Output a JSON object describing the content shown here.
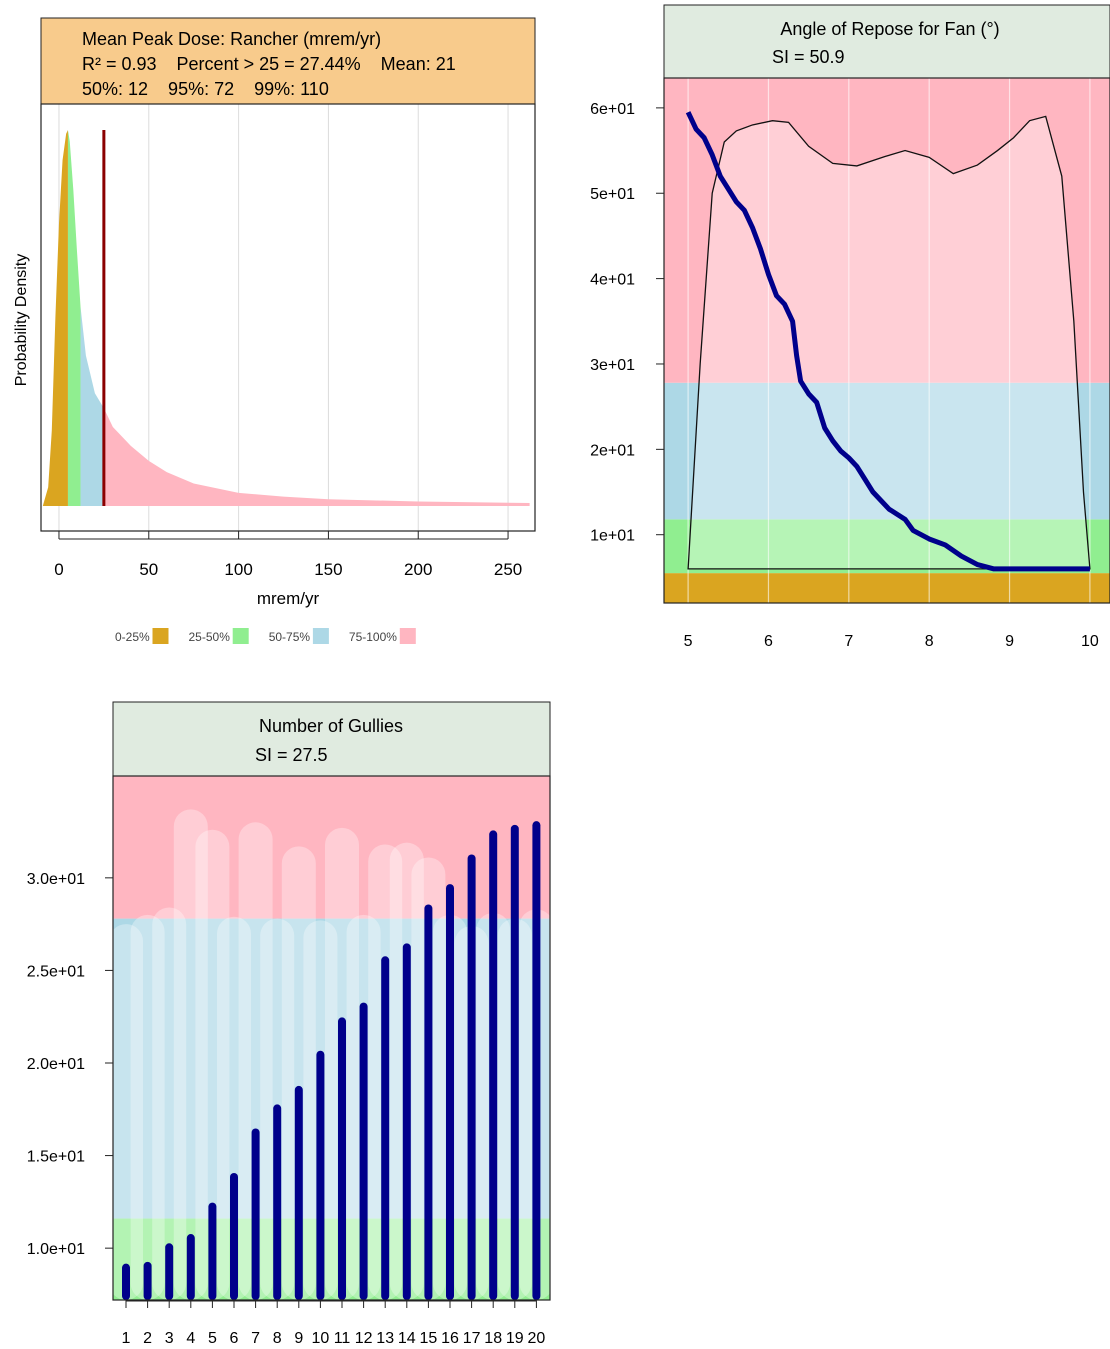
{
  "colors": {
    "q0_25": "#DAA520",
    "q25_50": "#90EE90",
    "q50_75": "#ADD8E6",
    "q75_100": "#FFB6C1",
    "mean_line": "#8B0000",
    "series": "#00008B",
    "header_orange": "#F8CB8C",
    "header_green": "#E0EBE0"
  },
  "chart_data": [
    {
      "type": "area",
      "title_lines": [
        "Mean Peak Dose: Rancher (mrem/yr)",
        "R² = 0.93    Percent > 25 = 27.44%    Mean: 21",
        "50%: 12    95%: 72    99%: 110"
      ],
      "xlabel": "mrem/yr",
      "ylabel": "Probability Density",
      "xticks": [
        "0",
        "50",
        "100",
        "150",
        "200",
        "250"
      ],
      "xlim": [
        -10,
        265
      ],
      "mean_line_x": 25,
      "quantile_breaks": [
        5,
        12,
        25
      ],
      "density": [
        [
          -9,
          0
        ],
        [
          -6,
          0.05
        ],
        [
          -4,
          0.2
        ],
        [
          -2,
          0.5
        ],
        [
          0,
          0.75
        ],
        [
          2,
          0.92
        ],
        [
          4,
          0.99
        ],
        [
          5,
          1.0
        ],
        [
          6,
          0.97
        ],
        [
          8,
          0.84
        ],
        [
          10,
          0.68
        ],
        [
          12,
          0.53
        ],
        [
          15,
          0.4
        ],
        [
          20,
          0.3
        ],
        [
          25,
          0.26
        ],
        [
          30,
          0.21
        ],
        [
          40,
          0.16
        ],
        [
          50,
          0.12
        ],
        [
          60,
          0.09
        ],
        [
          75,
          0.06
        ],
        [
          100,
          0.035
        ],
        [
          125,
          0.025
        ],
        [
          150,
          0.018
        ],
        [
          200,
          0.012
        ],
        [
          262,
          0.008
        ]
      ],
      "legend": [
        {
          "label": "0-25%",
          "color_key": "q0_25"
        },
        {
          "label": "25-50%",
          "color_key": "q25_50"
        },
        {
          "label": "50-75%",
          "color_key": "q50_75"
        },
        {
          "label": "75-100%",
          "color_key": "q75_100"
        }
      ],
      "legend_placement": "bottom"
    },
    {
      "type": "line",
      "title_lines": [
        "Angle of Repose for Fan (°)",
        "SI = 50.9"
      ],
      "xticks": [
        "5",
        "6",
        "7",
        "8",
        "9",
        "10"
      ],
      "yticks": [
        "1e+01",
        "2e+01",
        "3e+01",
        "4e+01",
        "5e+01",
        "6e+01"
      ],
      "xlim": [
        4.7,
        10.25
      ],
      "ylim": [
        2,
        63.5
      ],
      "bands": [
        {
          "from": 2,
          "to": 5.5,
          "color_key": "q0_25"
        },
        {
          "from": 5.5,
          "to": 11.8,
          "color_key": "q25_50"
        },
        {
          "from": 11.8,
          "to": 27.8,
          "color_key": "q50_75"
        },
        {
          "from": 27.8,
          "to": 63.5,
          "color_key": "q75_100"
        }
      ],
      "series": {
        "values": [
          [
            5.0,
            59.5
          ],
          [
            5.1,
            57.5
          ],
          [
            5.2,
            56.5
          ],
          [
            5.3,
            54.5
          ],
          [
            5.4,
            52
          ],
          [
            5.5,
            50.5
          ],
          [
            5.6,
            49
          ],
          [
            5.7,
            48
          ],
          [
            5.8,
            46
          ],
          [
            5.9,
            43.5
          ],
          [
            6.0,
            40.5
          ],
          [
            6.1,
            38
          ],
          [
            6.2,
            37
          ],
          [
            6.3,
            35
          ],
          [
            6.35,
            31
          ],
          [
            6.4,
            28
          ],
          [
            6.5,
            26.5
          ],
          [
            6.6,
            25.5
          ],
          [
            6.7,
            22.5
          ],
          [
            6.8,
            21
          ],
          [
            6.9,
            19.8
          ],
          [
            7.0,
            19
          ],
          [
            7.1,
            18
          ],
          [
            7.2,
            16.5
          ],
          [
            7.3,
            15
          ],
          [
            7.5,
            13
          ],
          [
            7.7,
            11.8
          ],
          [
            7.8,
            10.5
          ],
          [
            8.0,
            9.5
          ],
          [
            8.2,
            8.8
          ],
          [
            8.4,
            7.5
          ],
          [
            8.6,
            6.5
          ],
          [
            8.8,
            6.0
          ],
          [
            10.0,
            6.0
          ]
        ]
      },
      "density_outline": [
        [
          5.0,
          6
        ],
        [
          5.15,
          30
        ],
        [
          5.3,
          50
        ],
        [
          5.45,
          56
        ],
        [
          5.6,
          57.3
        ],
        [
          5.8,
          58
        ],
        [
          6.05,
          58.5
        ],
        [
          6.25,
          58.3
        ],
        [
          6.5,
          55.5
        ],
        [
          6.8,
          53.5
        ],
        [
          7.1,
          53.2
        ],
        [
          7.45,
          54.3
        ],
        [
          7.7,
          55
        ],
        [
          8.0,
          54.2
        ],
        [
          8.3,
          52.3
        ],
        [
          8.6,
          53.3
        ],
        [
          8.85,
          55
        ],
        [
          9.05,
          56.5
        ],
        [
          9.25,
          58.5
        ],
        [
          9.45,
          59
        ],
        [
          9.65,
          52
        ],
        [
          9.8,
          35
        ],
        [
          9.92,
          15
        ],
        [
          10.0,
          6
        ]
      ]
    },
    {
      "type": "bar",
      "title_lines": [
        "Number of Gullies",
        "SI = 27.5"
      ],
      "categories": [
        "1",
        "2",
        "3",
        "4",
        "5",
        "6",
        "7",
        "8",
        "9",
        "10",
        "11",
        "12",
        "13",
        "14",
        "15",
        "16",
        "17",
        "18",
        "19",
        "20"
      ],
      "values": [
        9.0,
        9.1,
        10.1,
        10.6,
        12.3,
        13.9,
        16.3,
        17.6,
        18.6,
        20.5,
        22.3,
        23.1,
        25.6,
        26.3,
        28.4,
        29.5,
        31.1,
        32.4,
        32.7,
        32.9
      ],
      "yticks": [
        "1.0e+01",
        "1.5e+01",
        "2.0e+01",
        "2.5e+01",
        "3.0e+01"
      ],
      "ylim": [
        7.2,
        35.5
      ],
      "bands": [
        {
          "from": 7.2,
          "to": 11.6,
          "color_key": "q25_50"
        },
        {
          "from": 11.6,
          "to": 27.8,
          "color_key": "q50_75"
        },
        {
          "from": 27.8,
          "to": 35.5,
          "color_key": "q75_100"
        }
      ],
      "ghost_bars": [
        27.5,
        28.0,
        28.4,
        33.7,
        32.6,
        27.9,
        33.0,
        27.8,
        31.7,
        27.7,
        32.7,
        28.0,
        31.8,
        31.9,
        31.1,
        28.0,
        27.4,
        28.1,
        27.8,
        28.3
      ]
    }
  ]
}
